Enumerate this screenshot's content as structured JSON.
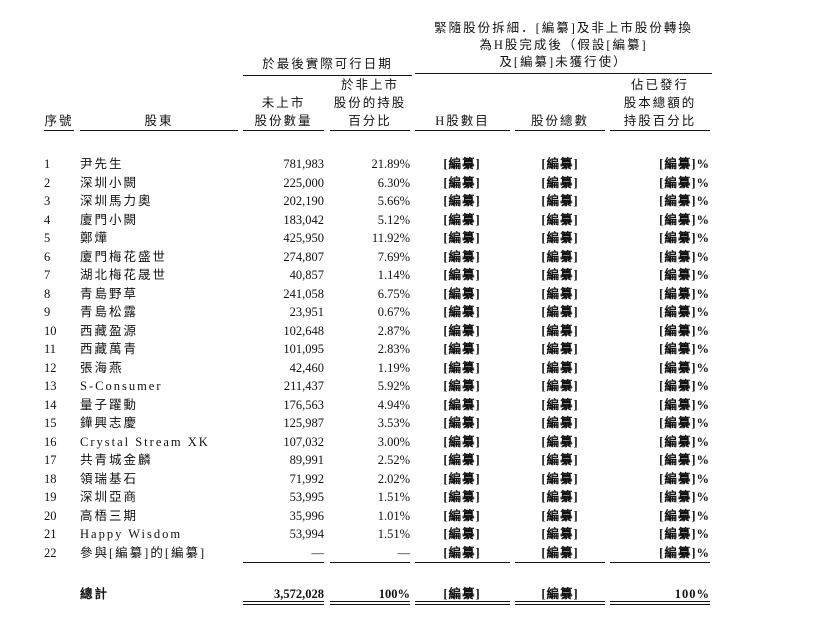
{
  "header": {
    "group_left": "於最後實際可行日期",
    "group_right_lines": [
      "緊隨股份拆細．[編纂]及非上市股份轉換",
      "為H股完成後（假設[編纂]",
      "及[編纂]未獲行使）"
    ],
    "columns": [
      {
        "lines": [
          "序號"
        ]
      },
      {
        "lines": [
          "股東"
        ]
      },
      {
        "lines": [
          "未上市",
          "股份數量"
        ]
      },
      {
        "lines": [
          "於非上市",
          "股份的持股",
          "百分比"
        ]
      },
      {
        "lines": [
          "H股數目"
        ]
      },
      {
        "lines": [
          "股份總數"
        ]
      },
      {
        "lines": [
          "佔已發行",
          "股本總額的",
          "持股百分比"
        ]
      }
    ]
  },
  "redacted": "[編纂]",
  "redacted_pct": "[編纂]%",
  "rows": [
    {
      "no": "1",
      "name": "尹先生",
      "shares": "781,983",
      "pct": "21.89%"
    },
    {
      "no": "2",
      "name": "深圳小闕",
      "shares": "225,000",
      "pct": "6.30%"
    },
    {
      "no": "3",
      "name": "深圳馬力奧",
      "shares": "202,190",
      "pct": "5.66%"
    },
    {
      "no": "4",
      "name": "廈門小闕",
      "shares": "183,042",
      "pct": "5.12%"
    },
    {
      "no": "5",
      "name": "鄭燁",
      "shares": "425,950",
      "pct": "11.92%"
    },
    {
      "no": "6",
      "name": "廈門梅花盛世",
      "shares": "274,807",
      "pct": "7.69%"
    },
    {
      "no": "7",
      "name": "湖北梅花晟世",
      "shares": "40,857",
      "pct": "1.14%"
    },
    {
      "no": "8",
      "name": "青島野草",
      "shares": "241,058",
      "pct": "6.75%"
    },
    {
      "no": "9",
      "name": "青島松露",
      "shares": "23,951",
      "pct": "0.67%"
    },
    {
      "no": "10",
      "name": "西藏盈源",
      "shares": "102,648",
      "pct": "2.87%"
    },
    {
      "no": "11",
      "name": "西藏萬青",
      "shares": "101,095",
      "pct": "2.83%"
    },
    {
      "no": "12",
      "name": "張海燕",
      "shares": "42,460",
      "pct": "1.19%"
    },
    {
      "no": "13",
      "name": "S-Consumer",
      "shares": "211,437",
      "pct": "5.92%"
    },
    {
      "no": "14",
      "name": "量子躍動",
      "shares": "176,563",
      "pct": "4.94%"
    },
    {
      "no": "15",
      "name": "鏵興志慶",
      "shares": "125,987",
      "pct": "3.53%"
    },
    {
      "no": "16",
      "name": "Crystal Stream XK",
      "shares": "107,032",
      "pct": "3.00%"
    },
    {
      "no": "17",
      "name": "共青城金麟",
      "shares": "89,991",
      "pct": "2.52%"
    },
    {
      "no": "18",
      "name": "領瑞基石",
      "shares": "71,992",
      "pct": "2.02%"
    },
    {
      "no": "19",
      "name": "深圳亞商",
      "shares": "53,995",
      "pct": "1.51%"
    },
    {
      "no": "20",
      "name": "高梧三期",
      "shares": "35,996",
      "pct": "1.01%"
    },
    {
      "no": "21",
      "name": "Happy Wisdom",
      "shares": "53,994",
      "pct": "1.51%"
    },
    {
      "no": "22",
      "name": "參與[編纂]的[編纂]",
      "shares": "—",
      "pct": "—"
    }
  ],
  "total": {
    "label": "總計",
    "shares": "3,572,028",
    "pct": "100%",
    "h_shares": "[編纂]",
    "total_shares": "[編纂]",
    "pct_total": "100%"
  }
}
